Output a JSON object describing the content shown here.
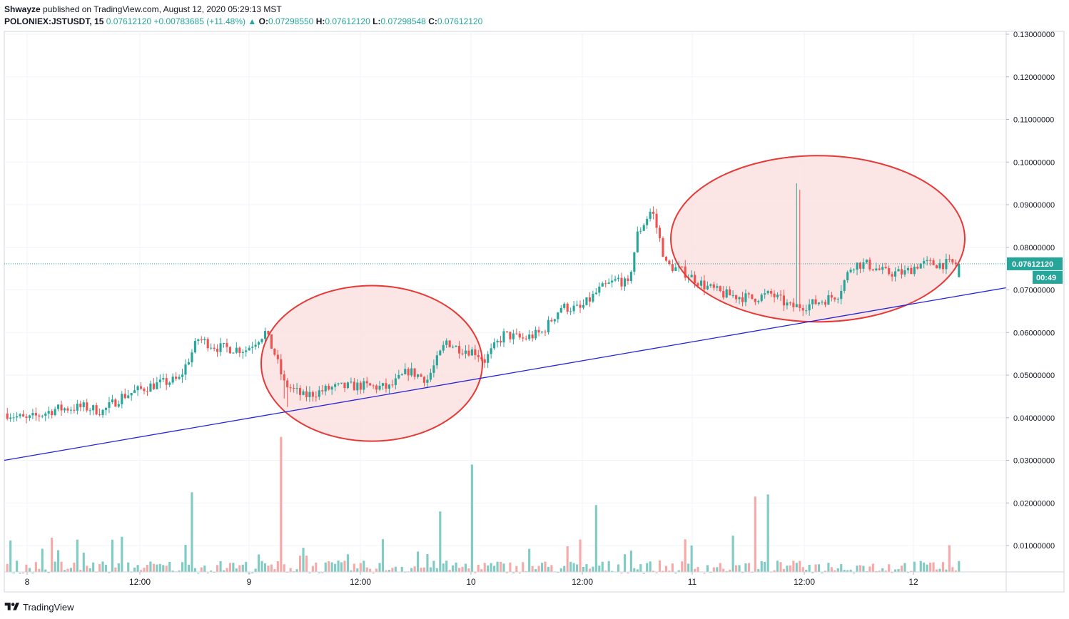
{
  "header": {
    "publisher": "Shwayze",
    "published_text": "published on TradingView.com, August 12, 2020 05:29:13 MST",
    "symbol": "POLONIEX:JSTUSDT, 15",
    "last": "0.07612120",
    "change": "+0.00783685 (+11.48%)",
    "o_label": "O:",
    "o_val": "0.07298550",
    "h_label": "H:",
    "h_val": "0.07612120",
    "l_label": "L:",
    "l_val": "0.07298548",
    "c_label": "C:",
    "c_val": "0.07612120"
  },
  "footer": {
    "brand": "TradingView"
  },
  "colors": {
    "up": "#26a69a",
    "down": "#ef5350",
    "up_volume": "#80cbc4",
    "down_volume": "#f7a9a7",
    "ellipse_stroke": "#e53935",
    "ellipse_fill": "#fbe0e0",
    "trendline": "#2525d8",
    "price_label_bg": "#26a69a",
    "grid": "#f0f3fa"
  },
  "chart_data": {
    "type": "candlestick",
    "symbol": "JSTUSDT",
    "exchange": "POLONIEX",
    "interval": "15",
    "grid": true,
    "y_axis": {
      "ticks": [
        "0.13000000",
        "0.12000000",
        "0.11000000",
        "0.10000000",
        "0.09000000",
        "0.08000000",
        "0.07000000",
        "0.06000000",
        "0.05000000",
        "0.04000000",
        "0.03000000",
        "0.02000000",
        "0.01000000"
      ],
      "ylim": [
        0.003,
        0.13
      ]
    },
    "x_axis": {
      "ticks": [
        "8",
        "12:00",
        "9",
        "12:00",
        "10",
        "12:00",
        "11",
        "12:00",
        "12"
      ]
    },
    "last_price_label": "0.07612120",
    "countdown_label": "00:49",
    "price_path": [
      [
        0,
        0.041
      ],
      [
        0.02,
        0.0395
      ],
      [
        0.05,
        0.042
      ],
      [
        0.08,
        0.0425
      ],
      [
        0.1,
        0.0415
      ],
      [
        0.12,
        0.045
      ],
      [
        0.15,
        0.0475
      ],
      [
        0.18,
        0.049
      ],
      [
        0.2,
        0.0585
      ],
      [
        0.22,
        0.0565
      ],
      [
        0.25,
        0.056
      ],
      [
        0.27,
        0.06
      ],
      [
        0.28,
        0.055
      ],
      [
        0.29,
        0.048
      ],
      [
        0.31,
        0.045
      ],
      [
        0.34,
        0.047
      ],
      [
        0.37,
        0.0475
      ],
      [
        0.4,
        0.047
      ],
      [
        0.42,
        0.051
      ],
      [
        0.44,
        0.049
      ],
      [
        0.46,
        0.058
      ],
      [
        0.47,
        0.0565
      ],
      [
        0.49,
        0.0555
      ],
      [
        0.5,
        0.0535
      ],
      [
        0.52,
        0.0595
      ],
      [
        0.54,
        0.0585
      ],
      [
        0.56,
        0.06
      ],
      [
        0.58,
        0.066
      ],
      [
        0.6,
        0.0655
      ],
      [
        0.62,
        0.07
      ],
      [
        0.64,
        0.0725
      ],
      [
        0.65,
        0.071
      ],
      [
        0.66,
        0.083
      ],
      [
        0.675,
        0.089
      ],
      [
        0.69,
        0.076
      ],
      [
        0.71,
        0.074
      ],
      [
        0.73,
        0.071
      ],
      [
        0.75,
        0.069
      ],
      [
        0.78,
        0.068
      ],
      [
        0.8,
        0.069
      ],
      [
        0.82,
        0.066
      ],
      [
        0.84,
        0.0665
      ],
      [
        0.86,
        0.068
      ],
      [
        0.87,
        0.069
      ],
      [
        0.885,
        0.076
      ],
      [
        0.9,
        0.076
      ],
      [
        0.92,
        0.074
      ],
      [
        0.94,
        0.074
      ],
      [
        0.955,
        0.0761
      ]
    ],
    "annotations": {
      "trendline": {
        "from": [
          "start",
          0.03
        ],
        "to": [
          "end",
          0.0705
        ]
      },
      "ellipses": [
        {
          "x_range": [
            "9 ~03:00",
            "10 ~03:00"
          ],
          "y_range": [
            0.0345,
            0.071
          ]
        },
        {
          "x_range": [
            "10 ~20:00",
            "12 ~03:00"
          ],
          "y_range": [
            0.0625,
            0.1015
          ]
        }
      ]
    }
  }
}
